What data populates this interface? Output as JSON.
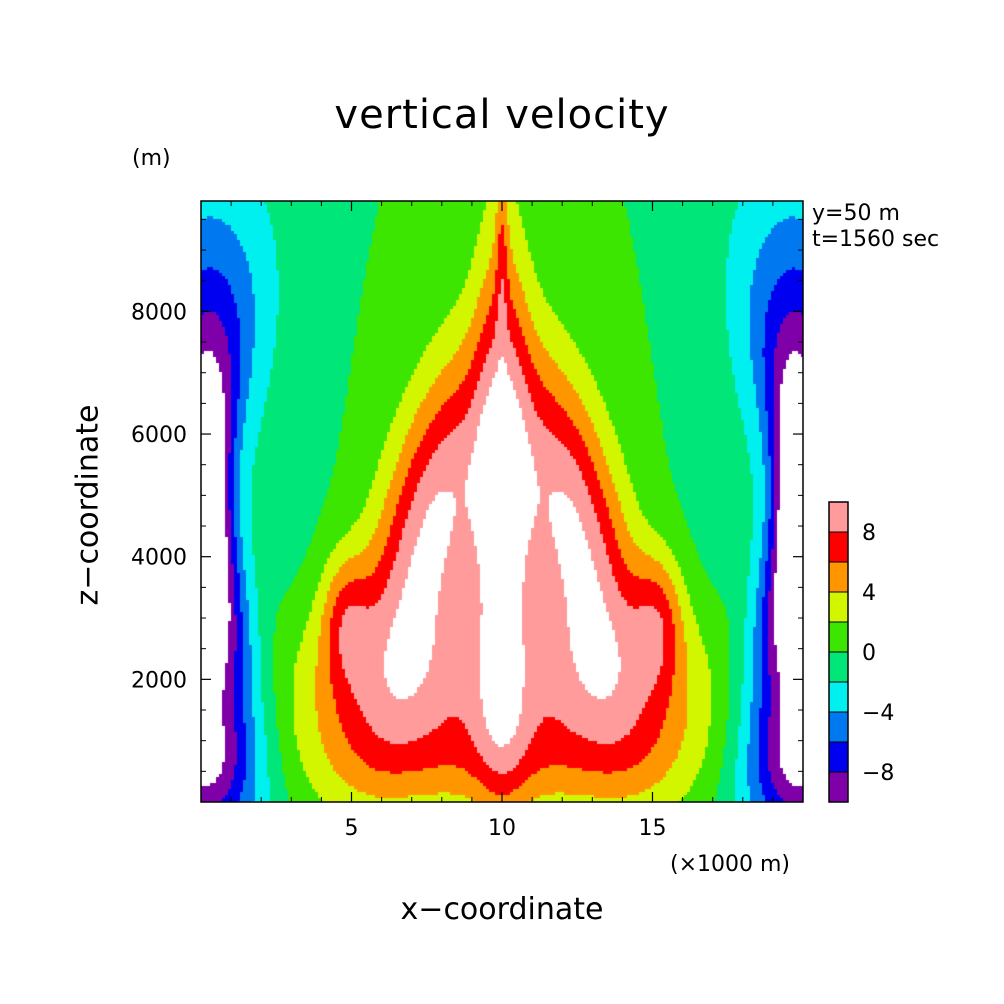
{
  "chart_data": {
    "type": "heatmap",
    "title": "vertical velocity",
    "xlabel": "x−coordinate",
    "ylabel": "z−coordinate",
    "x_unit": "(×1000 m)",
    "y_unit": "(m)",
    "annotations": [
      "y=50 m",
      "t=1560 sec"
    ],
    "xlim": [
      0,
      20
    ],
    "ylim": [
      0,
      9800
    ],
    "xticks": [
      5,
      10,
      15
    ],
    "xtick_labels": [
      "5",
      "10",
      "15"
    ],
    "yticks": [
      2000,
      4000,
      6000,
      8000
    ],
    "ytick_labels": [
      "2000",
      "4000",
      "6000",
      "8000"
    ],
    "colorbar": {
      "levels": [
        -10,
        -8,
        -6,
        -4,
        -2,
        0,
        2,
        4,
        6,
        8,
        10
      ],
      "tick_labels": [
        "8",
        "4",
        "0",
        "−4",
        "−8"
      ],
      "tick_values": [
        8,
        4,
        0,
        -4,
        -8
      ],
      "colors": [
        "#7f00a8",
        "#0000f0",
        "#0078f0",
        "#00f0f0",
        "#00e678",
        "#3ce600",
        "#d2f500",
        "#ff9600",
        "#ff0000",
        "#ff9b9b"
      ]
    },
    "field_description": "symmetric updraft about x=10 km: core >10 m/s between ~2500-6000 m; downdrafts <-10 m/s near lateral boundaries"
  }
}
